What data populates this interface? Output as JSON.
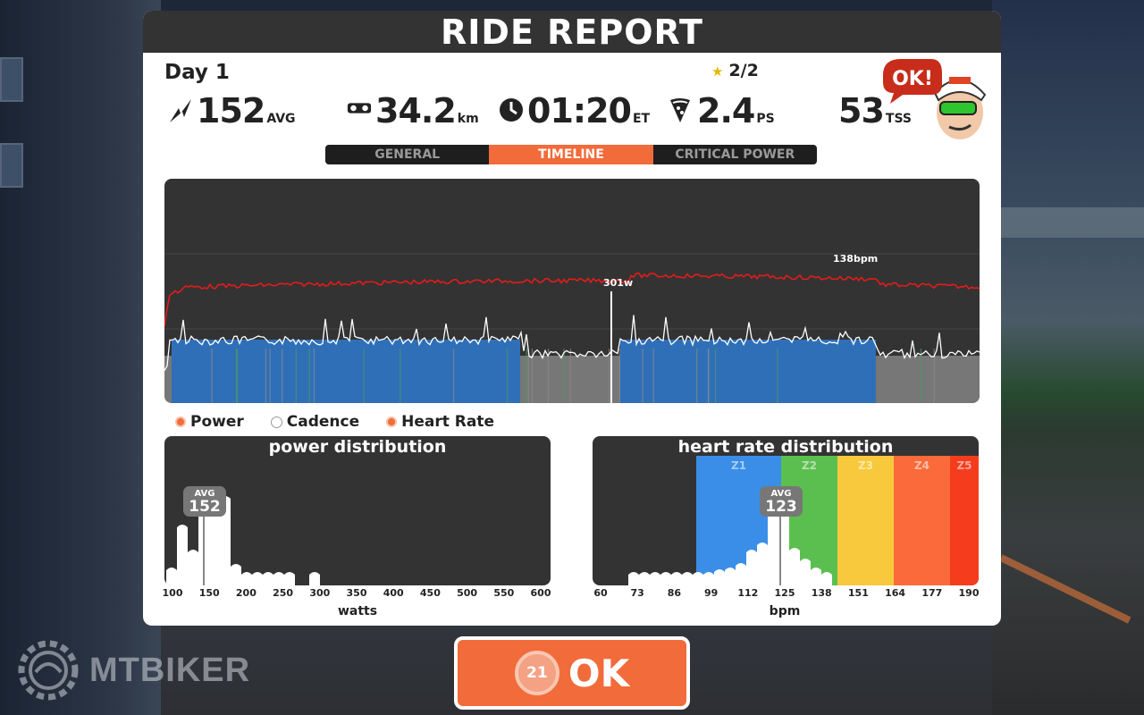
{
  "header": {
    "title": "RIDE REPORT"
  },
  "summary": {
    "day_label": "Day 1",
    "stars": "2/2",
    "power": {
      "value": "152",
      "unit": "AVG",
      "icon": "lightning-icon"
    },
    "distance": {
      "value": "34.2",
      "unit": "km",
      "icon": "bike-icon"
    },
    "time": {
      "value": "01:20",
      "unit": "ET",
      "icon": "clock-icon"
    },
    "pizza": {
      "value": "2.4",
      "unit": "PS",
      "icon": "pizza-icon"
    },
    "tss": {
      "value": "53",
      "unit": "TSS"
    },
    "badge_text": "OK!"
  },
  "tabs": [
    {
      "label": "GENERAL",
      "active": false
    },
    {
      "label": "TIMELINE",
      "active": true
    },
    {
      "label": "CRITICAL POWER",
      "active": false
    }
  ],
  "timeline": {
    "peak_power_label": "301w",
    "peak_hr_label": "138bpm",
    "colors": {
      "power_zone": "#2f6fb8",
      "power_low": "#777777",
      "cadence": "#ffffff",
      "heart_rate": "#e41b1b"
    }
  },
  "legend": [
    {
      "label": "Power"
    },
    {
      "label": "Cadence"
    },
    {
      "label": "Heart Rate"
    }
  ],
  "power_distribution": {
    "title": "power distribution",
    "avg_label": "AVG",
    "avg_value": "152",
    "axis_title": "watts",
    "ticks": [
      "100",
      "150",
      "200",
      "250",
      "300",
      "350",
      "400",
      "450",
      "500",
      "550",
      "600"
    ]
  },
  "hr_distribution": {
    "title": "heart rate distribution",
    "avg_label": "AVG",
    "avg_value": "123",
    "axis_title": "bpm",
    "ticks": [
      "60",
      "73",
      "86",
      "99",
      "112",
      "125",
      "138",
      "151",
      "164",
      "177",
      "190"
    ],
    "zones": [
      {
        "label": "Z1",
        "color": "#3a8ee8"
      },
      {
        "label": "Z2",
        "color": "#5bbf4f"
      },
      {
        "label": "Z3",
        "color": "#f8c93c"
      },
      {
        "label": "Z4",
        "color": "#fb6a3a"
      },
      {
        "label": "Z5",
        "color": "#f53d1e"
      }
    ]
  },
  "ok_button": {
    "label": "OK",
    "countdown": "21"
  },
  "watermark": {
    "text": "MTBIKER"
  }
}
